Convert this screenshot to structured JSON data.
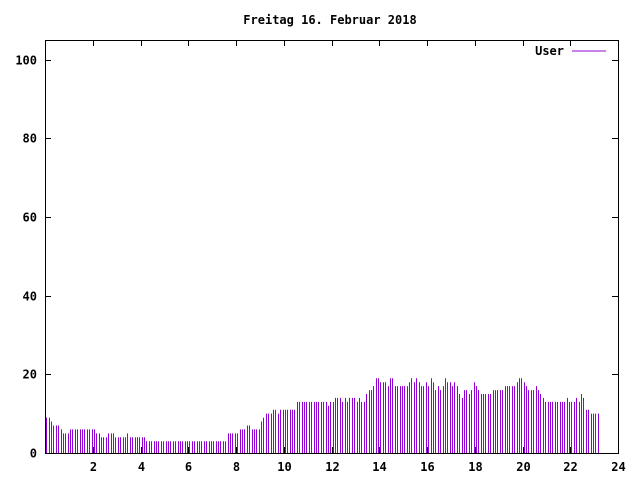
{
  "chart_data": {
    "type": "bar",
    "title": "Freitag 16. Februar 2018",
    "xlabel": "",
    "ylabel": "",
    "xlim": [
      0,
      24
    ],
    "ylim": [
      0,
      105
    ],
    "x_ticks": [
      2,
      4,
      6,
      8,
      10,
      12,
      14,
      16,
      18,
      20,
      22,
      24
    ],
    "y_ticks": [
      0,
      20,
      40,
      60,
      80,
      100
    ],
    "grid": false,
    "legend_position": "top-right",
    "colors": {
      "series": "#9400d3",
      "axis": "#000000"
    },
    "series": [
      {
        "name": "User",
        "interval_hours": 0.1,
        "values": [
          9,
          9,
          8,
          7,
          7,
          7,
          6,
          5,
          5,
          5,
          6,
          6,
          6,
          6,
          6,
          6,
          6,
          6,
          6,
          6,
          6,
          5,
          5,
          4,
          4,
          4,
          5,
          5,
          5,
          4,
          4,
          4,
          4,
          4,
          5,
          4,
          4,
          4,
          4,
          4,
          4,
          4,
          3,
          3,
          3,
          3,
          3,
          3,
          3,
          3,
          3,
          3,
          3,
          3,
          3,
          3,
          3,
          3,
          3,
          3,
          3,
          3,
          3,
          3,
          3,
          3,
          3,
          3,
          3,
          3,
          3,
          3,
          3,
          3,
          3,
          3,
          5,
          5,
          5,
          5,
          5,
          6,
          6,
          6,
          7,
          7,
          6,
          6,
          6,
          6,
          8,
          9,
          10,
          10,
          10,
          11,
          11,
          10,
          11,
          11,
          11,
          11,
          11,
          11,
          11,
          13,
          13,
          13,
          13,
          13,
          13,
          13,
          13,
          13,
          13,
          13,
          13,
          13,
          12,
          13,
          13,
          14,
          14,
          14,
          13,
          14,
          13,
          14,
          14,
          14,
          13,
          14,
          13,
          13,
          15,
          16,
          16,
          17,
          19,
          19,
          18,
          18,
          18,
          17,
          19,
          19,
          17,
          17,
          17,
          17,
          17,
          17,
          18,
          19,
          18,
          19,
          18,
          17,
          17,
          18,
          17,
          19,
          18,
          16,
          17,
          16,
          17,
          19,
          18,
          18,
          17,
          18,
          17,
          15,
          14,
          16,
          16,
          15,
          16,
          18,
          17,
          16,
          15,
          15,
          15,
          15,
          15,
          16,
          16,
          16,
          16,
          16,
          17,
          17,
          17,
          17,
          17,
          18,
          19,
          19,
          18,
          17,
          16,
          16,
          16,
          17,
          16,
          15,
          14,
          13,
          13,
          13,
          13,
          13,
          13,
          13,
          13,
          13,
          14,
          13,
          13,
          13,
          14,
          13,
          15,
          14,
          11,
          11,
          10,
          10,
          10,
          10
        ]
      }
    ]
  }
}
